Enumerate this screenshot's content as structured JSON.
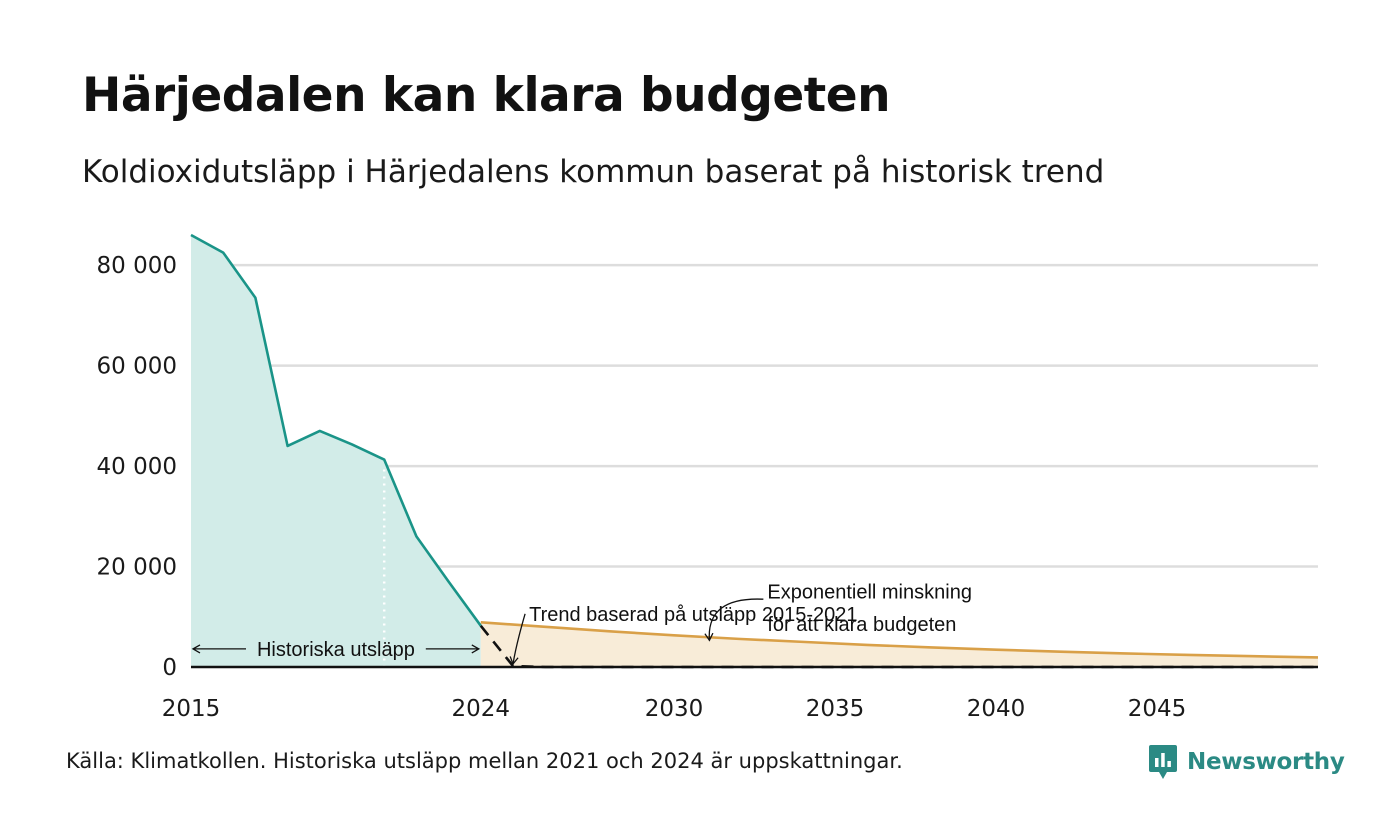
{
  "title": "Härjedalen kan klara budgeten",
  "subtitle": "Koldioxidutsläpp i Härjedalens kommun baserat på historisk trend",
  "source": "Källa: Klimatkollen. Historiska utsläpp mellan 2021 och 2024 är uppskattningar.",
  "brand": {
    "name": "Newsworthy",
    "icon": "newsworthy-logo-icon",
    "color": "#2b8a84"
  },
  "colors": {
    "historical_line": "#1a9488",
    "historical_fill": "#d2ece8",
    "budget_line": "#d9a048",
    "budget_fill": "#f8ecd8",
    "trend_line": "#111111",
    "grid": "#dddddd"
  },
  "chart_data": {
    "type": "area",
    "xlim": [
      2015,
      2050
    ],
    "ylim": [
      0,
      86000
    ],
    "x_ticks": [
      {
        "value": 2015,
        "label": "2015"
      },
      {
        "value": 2024,
        "label": "2024"
      },
      {
        "value": 2030,
        "label": "2030"
      },
      {
        "value": 2035,
        "label": "2035"
      },
      {
        "value": 2040,
        "label": "2040"
      },
      {
        "value": 2045,
        "label": "2045"
      }
    ],
    "y_ticks": [
      {
        "value": 0,
        "label": "0"
      },
      {
        "value": 20000,
        "label": "20 000"
      },
      {
        "value": 40000,
        "label": "40 000"
      },
      {
        "value": 60000,
        "label": "60 000"
      },
      {
        "value": 80000,
        "label": "80 000"
      }
    ],
    "grid": true,
    "estimate_from_year": 2021,
    "series": [
      {
        "name": "Historiska utsläpp",
        "style": "area",
        "x": [
          2015,
          2016,
          2017,
          2018,
          2019,
          2020,
          2021,
          2022,
          2023,
          2024
        ],
        "y": [
          86000,
          82500,
          73500,
          44000,
          47000,
          44300,
          41300,
          26000,
          17000,
          8200
        ]
      },
      {
        "name": "Trend baserad på utsläpp 2015-2021",
        "style": "dashed",
        "x": [
          2024,
          2025,
          2026,
          2027,
          2030,
          2035,
          2040,
          2045,
          2050
        ],
        "y": [
          8200,
          200,
          0,
          0,
          0,
          0,
          0,
          0,
          0
        ]
      },
      {
        "name": "Exponentiell minskning för att klara budgeten",
        "style": "area",
        "x": [
          2024,
          2026,
          2028,
          2030,
          2032,
          2034,
          2036,
          2038,
          2040,
          2042,
          2044,
          2046,
          2048,
          2050
        ],
        "y": [
          8900,
          8000,
          7100,
          6300,
          5600,
          5000,
          4400,
          3900,
          3450,
          3050,
          2700,
          2400,
          2150,
          1900
        ]
      }
    ],
    "annotations": [
      {
        "text": "Historiska utsläpp",
        "range": [
          2015,
          2024
        ],
        "y": 4000
      },
      {
        "text": "Trend baserad på utsläpp 2015-2021",
        "x": 2025.5,
        "y": 9000
      },
      {
        "text": "Exponentiell minskning",
        "x": 2032.9,
        "y": 15000
      },
      {
        "text": "för att klara budgeten",
        "x": 2032.9,
        "y": 10000
      }
    ]
  }
}
